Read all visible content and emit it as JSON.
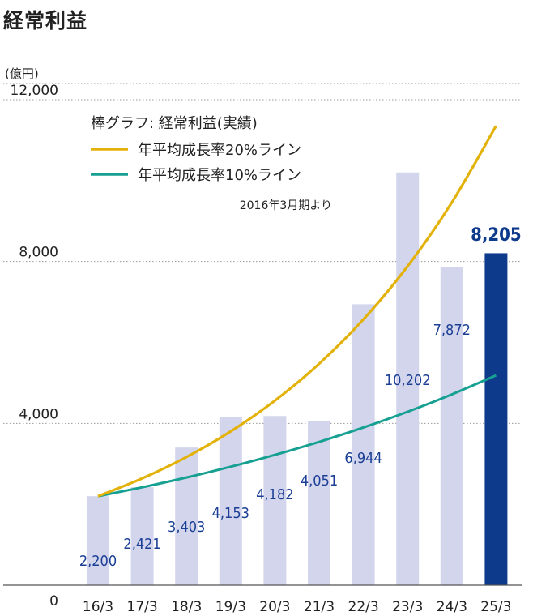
{
  "title": "経常利益",
  "chart_data": {
    "type": "bar",
    "unit_label": "(億円)",
    "categories": [
      "16/3",
      "17/3",
      "18/3",
      "19/3",
      "20/3",
      "21/3",
      "22/3",
      "23/3",
      "24/3",
      "25/3"
    ],
    "values": [
      2200,
      2421,
      3403,
      4153,
      4182,
      4051,
      6944,
      10202,
      7872,
      8205
    ],
    "value_labels": [
      "2,200",
      "2,421",
      "3,403",
      "4,153",
      "4,182",
      "4,051",
      "6,944",
      "10,202",
      "7,872",
      "8,205"
    ],
    "highlight_index": 9,
    "ylim": [
      0,
      12000
    ],
    "yticks": [
      0,
      4000,
      8000,
      12000
    ],
    "ytick_labels": [
      "0",
      "4,000",
      "8,000",
      "12,000"
    ],
    "colors": {
      "bar": "#d3d5ec",
      "highlight": "#0e3a8c",
      "line20": "#e3b20a",
      "line10": "#16a092",
      "label": "#1b3f95"
    },
    "series": [
      {
        "name": "年平均成長率20%ライン",
        "values": [
          2200,
          2640,
          3168,
          3802,
          4562,
          5474,
          6569,
          7883,
          9460,
          11352
        ]
      },
      {
        "name": "年平均成長率10%ライン",
        "values": [
          2200,
          2420,
          2662,
          2928,
          3221,
          3543,
          3897,
          4287,
          4716,
          5187
        ]
      }
    ],
    "legend": {
      "bar_label": "棒グラフ: 経常利益(実績)",
      "line20_label": "年平均成長率20%ライン",
      "line10_label": "年平均成長率10%ライン",
      "note": "2016年3月期より"
    }
  }
}
